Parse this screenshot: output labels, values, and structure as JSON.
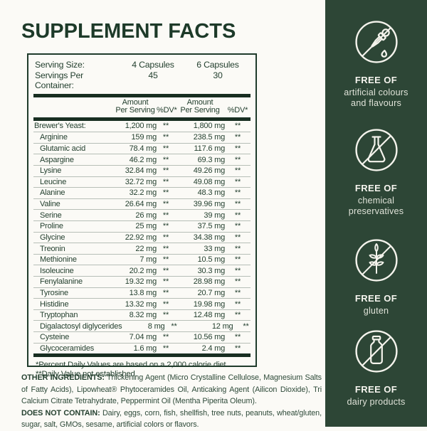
{
  "title": "SUPPLEMENT FACTS",
  "facts": {
    "serving_rows": [
      {
        "label": "Serving Size:",
        "col1": "4 Capsules",
        "col2": "6 Capsules"
      },
      {
        "label": "Servings Per Container:",
        "col1": "45",
        "col2": "30"
      }
    ],
    "header": {
      "amount": "Amount Per Serving",
      "dv": "%DV*"
    },
    "rows": [
      {
        "name": "Brewer's Yeast:",
        "amt1": "1,200 mg",
        "dv1": "**",
        "amt2": "1,800 mg",
        "dv2": "**",
        "indent": false
      },
      {
        "name": "Arginine",
        "amt1": "159 mg",
        "dv1": "**",
        "amt2": "238.5 mg",
        "dv2": "**",
        "indent": true
      },
      {
        "name": "Glutamic acid",
        "amt1": "78.4 mg",
        "dv1": "**",
        "amt2": "117.6 mg",
        "dv2": "**",
        "indent": true
      },
      {
        "name": "Aspargine",
        "amt1": "46.2 mg",
        "dv1": "**",
        "amt2": "69.3 mg",
        "dv2": "**",
        "indent": true
      },
      {
        "name": "Lysine",
        "amt1": "32.84 mg",
        "dv1": "**",
        "amt2": "49.26 mg",
        "dv2": "**",
        "indent": true
      },
      {
        "name": "Leucine",
        "amt1": "32.72 mg",
        "dv1": "**",
        "amt2": "49.08 mg",
        "dv2": "**",
        "indent": true
      },
      {
        "name": "Alanine",
        "amt1": "32.2 mg",
        "dv1": "**",
        "amt2": "48.3 mg",
        "dv2": "**",
        "indent": true
      },
      {
        "name": "Valine",
        "amt1": "26.64 mg",
        "dv1": "**",
        "amt2": "39.96 mg",
        "dv2": "**",
        "indent": true
      },
      {
        "name": "Serine",
        "amt1": "26 mg",
        "dv1": "**",
        "amt2": "39 mg",
        "dv2": "**",
        "indent": true
      },
      {
        "name": "Proline",
        "amt1": "25 mg",
        "dv1": "**",
        "amt2": "37.5 mg",
        "dv2": "**",
        "indent": true
      },
      {
        "name": "Glycine",
        "amt1": "22.92 mg",
        "dv1": "**",
        "amt2": "34.38 mg",
        "dv2": "**",
        "indent": true
      },
      {
        "name": "Treonin",
        "amt1": "22 mg",
        "dv1": "**",
        "amt2": "33 mg",
        "dv2": "**",
        "indent": true
      },
      {
        "name": "Methionine",
        "amt1": "7 mg",
        "dv1": "**",
        "amt2": "10.5 mg",
        "dv2": "**",
        "indent": true
      },
      {
        "name": "Isoleucine",
        "amt1": "20.2 mg",
        "dv1": "**",
        "amt2": "30.3 mg",
        "dv2": "**",
        "indent": true
      },
      {
        "name": "Fenylalanine",
        "amt1": "19.32 mg",
        "dv1": "**",
        "amt2": "28.98 mg",
        "dv2": "**",
        "indent": true
      },
      {
        "name": "Tyrosine",
        "amt1": "13.8 mg",
        "dv1": "**",
        "amt2": "20.7 mg",
        "dv2": "**",
        "indent": true
      },
      {
        "name": "Histidine",
        "amt1": "13.32 mg",
        "dv1": "**",
        "amt2": "19.98 mg",
        "dv2": "**",
        "indent": true
      },
      {
        "name": "Tryptophan",
        "amt1": "8.32 mg",
        "dv1": "**",
        "amt2": "12.48 mg",
        "dv2": "**",
        "indent": true
      },
      {
        "name": "Digalactosyl diglycerides",
        "amt1": "8 mg",
        "dv1": "**",
        "amt2": "12 mg",
        "dv2": "**",
        "indent": true
      },
      {
        "name": "Cysteine",
        "amt1": "7.04 mg",
        "dv1": "**",
        "amt2": "10.56 mg",
        "dv2": "**",
        "indent": true
      },
      {
        "name": "Glycoceramides",
        "amt1": "1.6 mg",
        "dv1": "**",
        "amt2": "2.4 mg",
        "dv2": "**",
        "indent": true
      }
    ],
    "footnotes": [
      "*Percent Daily Values are based on a 2,000 calorie diet.",
      "**Daily Value not established."
    ]
  },
  "other_ingredients": {
    "label": "OTHER INGREDIENTS:",
    "text": "Thickening Agent (Micro Crystalline Cellulose, Magnesium Salts of Fatty Acids), Lipowheat® Phytoceramides Oil, Anticaking Agent (Ailicon Dioxide), Tri Calcium Citrate Tetrahydrate, Peppermint Oil (Mentha Piperita Oleum)."
  },
  "does_not_contain": {
    "label": "DOES NOT CONTAIN:",
    "text": "Dairy, eggs, corn, fish, shellfish, tree nuts, peanuts, wheat/gluten, sugar, salt, GMOs, sesame, artificial colors or flavors."
  },
  "sidebar": {
    "badges": [
      {
        "icon": "dropper-icon",
        "title": "FREE OF",
        "subtitle": "artificial colours and flavours"
      },
      {
        "icon": "flask-icon",
        "title": "FREE OF",
        "subtitle": "chemical preservatives"
      },
      {
        "icon": "wheat-icon",
        "title": "FREE OF",
        "subtitle": "gluten"
      },
      {
        "icon": "milk-bottle-icon",
        "title": "FREE OF",
        "subtitle": "dairy products"
      }
    ]
  },
  "colors": {
    "background": "#fbfaf6",
    "dark_green_text": "#24402f",
    "title_green": "#1d3a29",
    "bar_green": "#182e21",
    "separator": "#b7bfb7",
    "sidebar_bg": "#2d4636",
    "sidebar_text": "#f6f5ef"
  }
}
